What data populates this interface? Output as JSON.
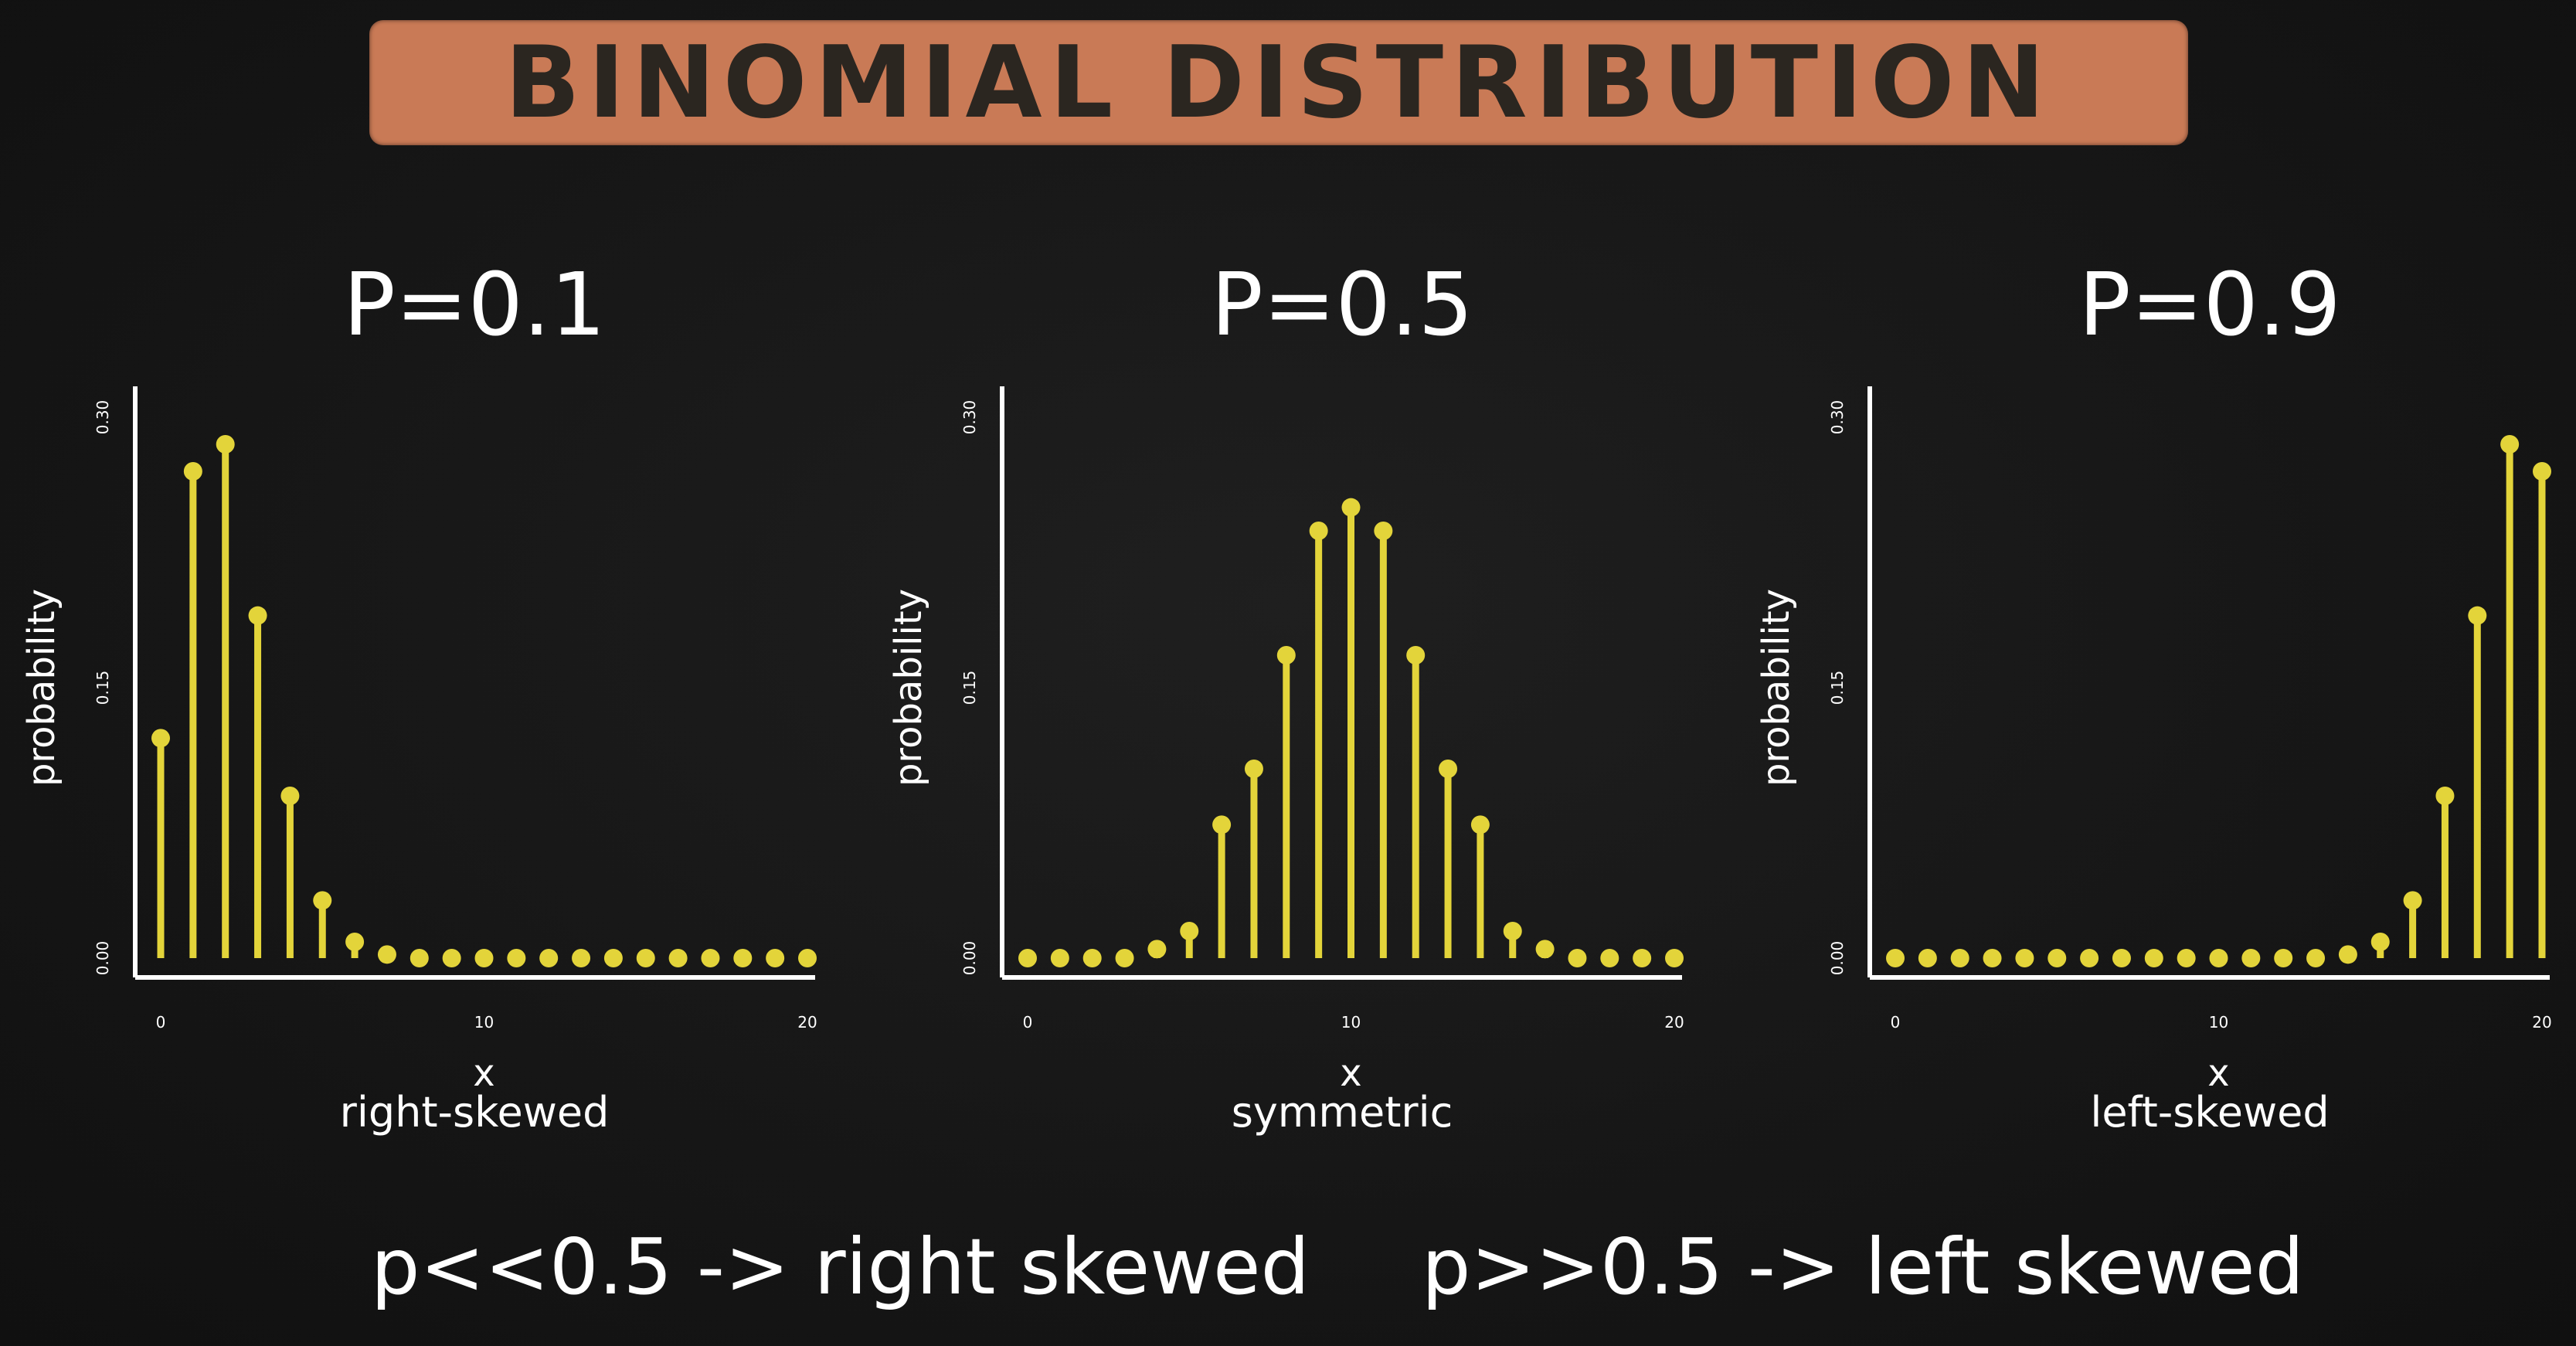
{
  "header": {
    "title": "BINOMIAL DISTRIBUTION"
  },
  "colors": {
    "stem": "#e3d43a",
    "axis": "#ffffff",
    "banner": "#c97a56",
    "background": "#161616"
  },
  "panels": [
    {
      "title": "P=0.1",
      "caption": "right-skewed"
    },
    {
      "title": "P=0.5",
      "caption": "symmetric"
    },
    {
      "title": "P=0.9",
      "caption": "left-skewed"
    }
  ],
  "notes": {
    "left": "p<<0.5 -> right skewed",
    "right": "p>>0.5 -> left skewed"
  },
  "chart_data": [
    {
      "type": "scatter",
      "style": "stem",
      "title": "P=0.1",
      "xlabel": "x",
      "ylabel": "probability",
      "xlim": [
        0,
        20
      ],
      "ylim": [
        0,
        0.3
      ],
      "xticks": [
        0,
        10,
        20
      ],
      "xtick_labels": [
        "0",
        "10",
        "20"
      ],
      "yticks": [
        0,
        0.15,
        0.3
      ],
      "ytick_labels": [
        "0.00",
        "0.15",
        "0.30"
      ],
      "x": [
        0,
        1,
        2,
        3,
        4,
        5,
        6,
        7,
        8,
        9,
        10,
        11,
        12,
        13,
        14,
        15,
        16,
        17,
        18,
        19,
        20
      ],
      "y": [
        0.122,
        0.27,
        0.285,
        0.19,
        0.09,
        0.032,
        0.009,
        0.002,
        0,
        0,
        0,
        0,
        0,
        0,
        0,
        0,
        0,
        0,
        0,
        0,
        0
      ]
    },
    {
      "type": "scatter",
      "style": "stem",
      "title": "P=0.5",
      "xlabel": "x",
      "ylabel": "probability",
      "xlim": [
        0,
        20
      ],
      "ylim": [
        0,
        0.3
      ],
      "xticks": [
        0,
        10,
        20
      ],
      "xtick_labels": [
        "0",
        "10",
        "20"
      ],
      "yticks": [
        0,
        0.15,
        0.3
      ],
      "ytick_labels": [
        "0.00",
        "0.15",
        "0.30"
      ],
      "x": [
        0,
        1,
        2,
        3,
        4,
        5,
        6,
        7,
        8,
        9,
        10,
        11,
        12,
        13,
        14,
        15,
        16,
        17,
        18,
        19,
        20
      ],
      "y": [
        0,
        0,
        0,
        0,
        0.005,
        0.015,
        0.074,
        0.105,
        0.168,
        0.237,
        0.25,
        0.237,
        0.168,
        0.105,
        0.074,
        0.015,
        0.005,
        0,
        0,
        0,
        0
      ]
    },
    {
      "type": "scatter",
      "style": "stem",
      "title": "P=0.9",
      "xlabel": "x",
      "ylabel": "probability",
      "xlim": [
        0,
        20
      ],
      "ylim": [
        0,
        0.3
      ],
      "xticks": [
        0,
        10,
        20
      ],
      "xtick_labels": [
        "0",
        "10",
        "20"
      ],
      "yticks": [
        0,
        0.15,
        0.3
      ],
      "ytick_labels": [
        "0.00",
        "0.15",
        "0.30"
      ],
      "x": [
        0,
        1,
        2,
        3,
        4,
        5,
        6,
        7,
        8,
        9,
        10,
        11,
        12,
        13,
        14,
        15,
        16,
        17,
        18,
        19,
        20
      ],
      "y": [
        0,
        0,
        0,
        0,
        0,
        0,
        0,
        0,
        0,
        0,
        0,
        0,
        0,
        0,
        0.002,
        0.009,
        0.032,
        0.09,
        0.19,
        0.285,
        0.27
      ]
    }
  ]
}
